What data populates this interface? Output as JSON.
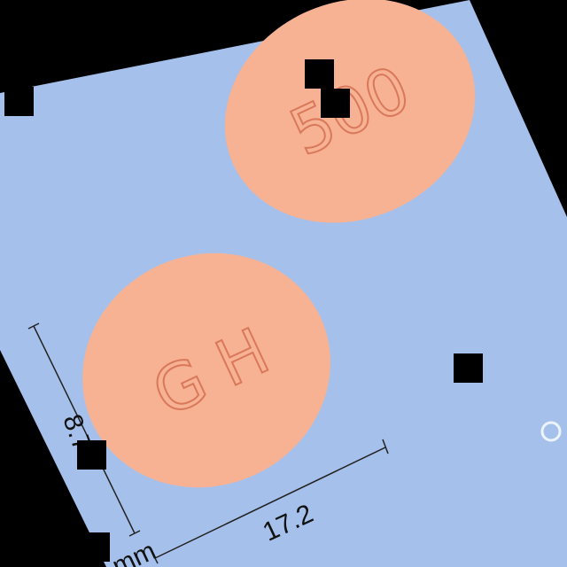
{
  "pills": [
    {
      "imprint": "500"
    },
    {
      "imprint": "G H"
    }
  ],
  "dimensions": {
    "height": "8.7",
    "width": "17.2",
    "unit": "mm"
  }
}
